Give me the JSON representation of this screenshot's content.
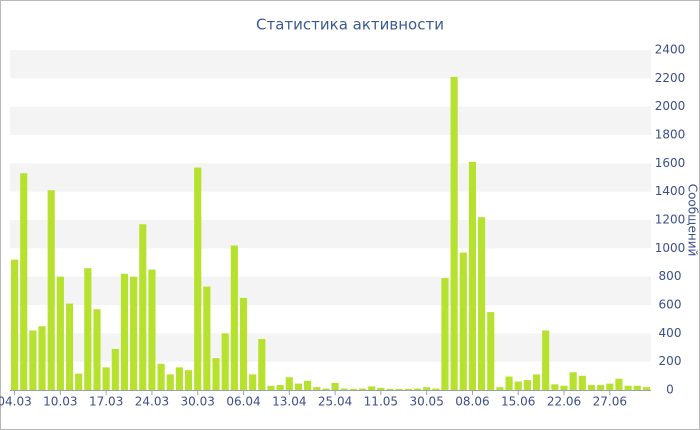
{
  "chart_data": {
    "type": "bar",
    "title": "Статистика активности",
    "y_label": "Сообщений",
    "categories": [
      "04.03",
      null,
      null,
      null,
      null,
      "10.03",
      null,
      null,
      null,
      null,
      "17.03",
      null,
      null,
      null,
      null,
      "24.03",
      null,
      null,
      null,
      null,
      "30.03",
      null,
      null,
      null,
      null,
      "06.04",
      null,
      null,
      null,
      null,
      "13.04",
      null,
      null,
      null,
      null,
      "25.04",
      null,
      null,
      null,
      null,
      "11.05",
      null,
      null,
      null,
      null,
      "30.05",
      null,
      null,
      null,
      null,
      "08.06",
      null,
      null,
      null,
      null,
      "15.06",
      null,
      null,
      null,
      null,
      "22.06",
      null,
      null,
      null,
      null,
      "27.06",
      null,
      null,
      null,
      null
    ],
    "values": [
      920,
      1530,
      420,
      450,
      1410,
      800,
      610,
      115,
      860,
      570,
      160,
      290,
      820,
      800,
      1170,
      850,
      185,
      110,
      160,
      140,
      1570,
      730,
      225,
      400,
      1020,
      650,
      110,
      360,
      30,
      35,
      90,
      45,
      65,
      20,
      10,
      50,
      10,
      8,
      10,
      25,
      15,
      8,
      8,
      8,
      10,
      20,
      10,
      790,
      2210,
      970,
      1610,
      1220,
      550,
      20,
      95,
      60,
      70,
      110,
      420,
      40,
      30,
      125,
      100,
      35,
      35,
      45,
      80,
      30,
      30,
      20
    ],
    "color": "#b6e12f",
    "ylim": [
      0,
      2400
    ],
    "yticks": [
      0,
      200,
      400,
      600,
      800,
      1000,
      1200,
      1400,
      1600,
      1800,
      2000,
      2200,
      2400
    ],
    "y_axis_side": "right",
    "grid": true
  }
}
